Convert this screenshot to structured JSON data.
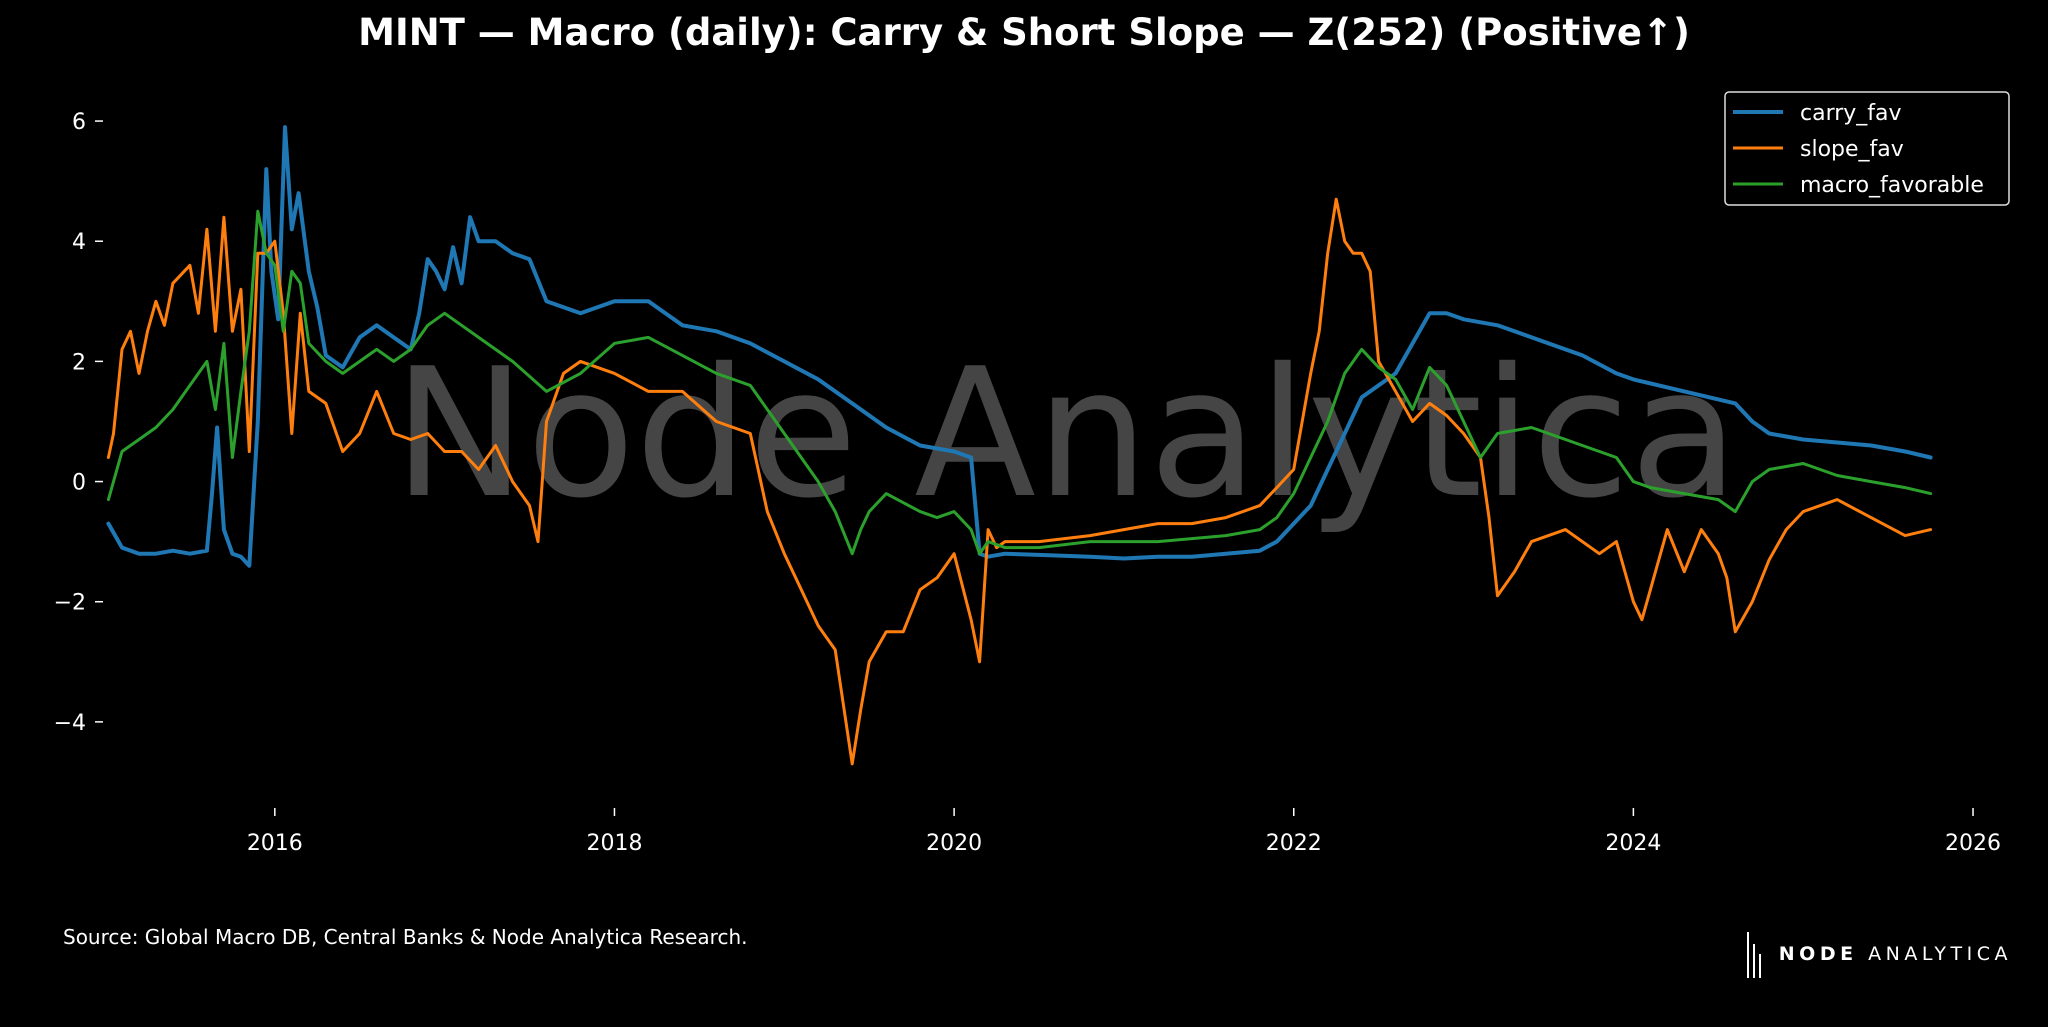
{
  "source": "Source: Global Macro DB, Central Banks & Node Analytica Research.",
  "brand": {
    "bold": "NODE",
    "light": "ANALYTICA"
  },
  "watermark": "Node Analytica",
  "chart_data": {
    "type": "line",
    "title": "MINT — Macro (daily): Carry & Short Slope — Z(252) (Positive↑)",
    "xlabel": "",
    "ylabel": "",
    "xlim": [
      2015.0,
      2026.1
    ],
    "ylim": [
      -5.3,
      6.6
    ],
    "xticks": [
      2016,
      2018,
      2020,
      2022,
      2024,
      2026
    ],
    "xtick_labels": [
      "2016",
      "2018",
      "2020",
      "2022",
      "2024",
      "2026"
    ],
    "yticks": [
      6,
      4,
      2,
      0,
      -2,
      -4
    ],
    "ytick_labels": [
      "6",
      "4",
      "2",
      "0",
      "−2",
      "−4"
    ],
    "grid": false,
    "legend_position": "top-right",
    "series": [
      {
        "name": "carry_fav",
        "color": "#1f77b4",
        "x": [
          2015.02,
          2015.1,
          2015.2,
          2015.3,
          2015.4,
          2015.5,
          2015.6,
          2015.63,
          2015.66,
          2015.7,
          2015.75,
          2015.8,
          2015.85,
          2015.9,
          2015.95,
          2015.98,
          2016.02,
          2016.06,
          2016.1,
          2016.14,
          2016.2,
          2016.25,
          2016.3,
          2016.4,
          2016.5,
          2016.6,
          2016.7,
          2016.8,
          2016.85,
          2016.9,
          2016.95,
          2017.0,
          2017.05,
          2017.1,
          2017.15,
          2017.2,
          2017.3,
          2017.4,
          2017.5,
          2017.6,
          2017.7,
          2017.8,
          2018.0,
          2018.2,
          2018.4,
          2018.6,
          2018.8,
          2019.0,
          2019.2,
          2019.4,
          2019.6,
          2019.8,
          2019.9,
          2020.0,
          2020.1,
          2020.15,
          2020.2,
          2020.3,
          2020.5,
          2020.8,
          2021.0,
          2021.2,
          2021.4,
          2021.6,
          2021.8,
          2021.9,
          2022.0,
          2022.1,
          2022.2,
          2022.3,
          2022.4,
          2022.5,
          2022.6,
          2022.7,
          2022.8,
          2022.9,
          2023.0,
          2023.2,
          2023.3,
          2023.5,
          2023.7,
          2023.9,
          2024.0,
          2024.3,
          2024.6,
          2024.7,
          2024.8,
          2025.0,
          2025.2,
          2025.4,
          2025.6,
          2025.75
        ],
        "y": [
          -0.7,
          -1.1,
          -1.2,
          -1.2,
          -1.15,
          -1.2,
          -1.15,
          -0.2,
          0.9,
          -0.8,
          -1.2,
          -1.25,
          -1.4,
          1.0,
          5.2,
          3.5,
          2.7,
          5.9,
          4.2,
          4.8,
          3.5,
          2.9,
          2.1,
          1.9,
          2.4,
          2.6,
          2.4,
          2.2,
          2.8,
          3.7,
          3.5,
          3.2,
          3.9,
          3.3,
          4.4,
          4.0,
          4.0,
          3.8,
          3.7,
          3.0,
          2.9,
          2.8,
          3.0,
          3.0,
          2.6,
          2.5,
          2.3,
          2.0,
          1.7,
          1.3,
          0.9,
          0.6,
          0.55,
          0.5,
          0.4,
          -1.2,
          -1.25,
          -1.2,
          -1.22,
          -1.25,
          -1.28,
          -1.25,
          -1.25,
          -1.2,
          -1.15,
          -1.0,
          -0.7,
          -0.4,
          0.2,
          0.8,
          1.4,
          1.6,
          1.8,
          2.3,
          2.8,
          2.8,
          2.7,
          2.6,
          2.5,
          2.3,
          2.1,
          1.8,
          1.7,
          1.5,
          1.3,
          1.0,
          0.8,
          0.7,
          0.65,
          0.6,
          0.5,
          0.4
        ]
      },
      {
        "name": "slope_fav",
        "color": "#ff7f0e",
        "x": [
          2015.02,
          2015.05,
          2015.1,
          2015.15,
          2015.2,
          2015.25,
          2015.3,
          2015.35,
          2015.4,
          2015.5,
          2015.55,
          2015.6,
          2015.65,
          2015.7,
          2015.75,
          2015.8,
          2015.85,
          2015.9,
          2015.95,
          2016.0,
          2016.05,
          2016.1,
          2016.15,
          2016.2,
          2016.3,
          2016.4,
          2016.5,
          2016.6,
          2016.7,
          2016.8,
          2016.9,
          2017.0,
          2017.1,
          2017.2,
          2017.3,
          2017.4,
          2017.5,
          2017.55,
          2017.6,
          2017.7,
          2017.8,
          2018.0,
          2018.2,
          2018.4,
          2018.6,
          2018.8,
          2018.9,
          2019.0,
          2019.1,
          2019.2,
          2019.3,
          2019.4,
          2019.45,
          2019.5,
          2019.6,
          2019.7,
          2019.8,
          2019.9,
          2020.0,
          2020.1,
          2020.15,
          2020.2,
          2020.25,
          2020.3,
          2020.5,
          2020.8,
          2021.0,
          2021.2,
          2021.4,
          2021.6,
          2021.8,
          2021.9,
          2022.0,
          2022.1,
          2022.15,
          2022.2,
          2022.25,
          2022.3,
          2022.35,
          2022.4,
          2022.45,
          2022.5,
          2022.6,
          2022.7,
          2022.8,
          2022.9,
          2023.0,
          2023.1,
          2023.15,
          2023.2,
          2023.3,
          2023.4,
          2023.6,
          2023.8,
          2023.9,
          2024.0,
          2024.05,
          2024.1,
          2024.2,
          2024.3,
          2024.4,
          2024.5,
          2024.55,
          2024.6,
          2024.7,
          2024.8,
          2024.9,
          2025.0,
          2025.2,
          2025.4,
          2025.6,
          2025.75
        ],
        "y": [
          0.4,
          0.8,
          2.2,
          2.5,
          1.8,
          2.5,
          3.0,
          2.6,
          3.3,
          3.6,
          2.8,
          4.2,
          2.5,
          4.4,
          2.5,
          3.2,
          0.5,
          3.8,
          3.8,
          4.0,
          2.8,
          0.8,
          2.8,
          1.5,
          1.3,
          0.5,
          0.8,
          1.5,
          0.8,
          0.7,
          0.8,
          0.5,
          0.5,
          0.2,
          0.6,
          0.0,
          -0.4,
          -1.0,
          1.0,
          1.8,
          2.0,
          1.8,
          1.5,
          1.5,
          1.0,
          0.8,
          -0.5,
          -1.2,
          -1.8,
          -2.4,
          -2.8,
          -4.7,
          -3.8,
          -3.0,
          -2.5,
          -2.5,
          -1.8,
          -1.6,
          -1.2,
          -2.3,
          -3.0,
          -0.8,
          -1.1,
          -1.0,
          -1.0,
          -0.9,
          -0.8,
          -0.7,
          -0.7,
          -0.6,
          -0.4,
          -0.1,
          0.2,
          1.8,
          2.5,
          3.8,
          4.7,
          4.0,
          3.8,
          3.8,
          3.5,
          2.0,
          1.5,
          1.0,
          1.3,
          1.1,
          0.8,
          0.4,
          -0.6,
          -1.9,
          -1.5,
          -1.0,
          -0.8,
          -1.2,
          -1.0,
          -2.0,
          -2.3,
          -1.8,
          -0.8,
          -1.5,
          -0.8,
          -1.2,
          -1.6,
          -2.5,
          -2.0,
          -1.3,
          -0.8,
          -0.5,
          -0.3,
          -0.6,
          -0.9,
          -0.8
        ]
      },
      {
        "name": "macro_favorable",
        "color": "#2ca02c",
        "x": [
          2015.02,
          2015.1,
          2015.2,
          2015.3,
          2015.4,
          2015.5,
          2015.6,
          2015.65,
          2015.7,
          2015.75,
          2015.8,
          2015.85,
          2015.9,
          2015.95,
          2016.0,
          2016.05,
          2016.1,
          2016.15,
          2016.2,
          2016.3,
          2016.4,
          2016.5,
          2016.6,
          2016.7,
          2016.8,
          2016.9,
          2017.0,
          2017.2,
          2017.4,
          2017.6,
          2017.8,
          2018.0,
          2018.2,
          2018.4,
          2018.6,
          2018.8,
          2019.0,
          2019.2,
          2019.3,
          2019.4,
          2019.45,
          2019.5,
          2019.6,
          2019.8,
          2019.9,
          2020.0,
          2020.1,
          2020.15,
          2020.2,
          2020.3,
          2020.5,
          2020.8,
          2021.0,
          2021.2,
          2021.4,
          2021.6,
          2021.8,
          2021.9,
          2022.0,
          2022.1,
          2022.2,
          2022.3,
          2022.4,
          2022.5,
          2022.6,
          2022.7,
          2022.8,
          2022.9,
          2023.0,
          2023.1,
          2023.2,
          2023.4,
          2023.6,
          2023.8,
          2023.9,
          2024.0,
          2024.1,
          2024.3,
          2024.5,
          2024.6,
          2024.7,
          2024.8,
          2025.0,
          2025.2,
          2025.4,
          2025.6,
          2025.75
        ],
        "y": [
          -0.3,
          0.5,
          0.7,
          0.9,
          1.2,
          1.6,
          2.0,
          1.2,
          2.3,
          0.4,
          1.5,
          2.5,
          4.5,
          3.8,
          3.6,
          2.5,
          3.5,
          3.3,
          2.3,
          2.0,
          1.8,
          2.0,
          2.2,
          2.0,
          2.2,
          2.6,
          2.8,
          2.4,
          2.0,
          1.5,
          1.8,
          2.3,
          2.4,
          2.1,
          1.8,
          1.6,
          0.8,
          0.0,
          -0.5,
          -1.2,
          -0.8,
          -0.5,
          -0.2,
          -0.5,
          -0.6,
          -0.5,
          -0.8,
          -1.2,
          -1.0,
          -1.1,
          -1.1,
          -1.0,
          -1.0,
          -1.0,
          -0.95,
          -0.9,
          -0.8,
          -0.6,
          -0.2,
          0.4,
          1.0,
          1.8,
          2.2,
          1.9,
          1.7,
          1.2,
          1.9,
          1.6,
          1.0,
          0.4,
          0.8,
          0.9,
          0.7,
          0.5,
          0.4,
          0.0,
          -0.1,
          -0.2,
          -0.3,
          -0.5,
          0.0,
          0.2,
          0.3,
          0.1,
          0.0,
          -0.1,
          -0.2
        ]
      }
    ]
  }
}
